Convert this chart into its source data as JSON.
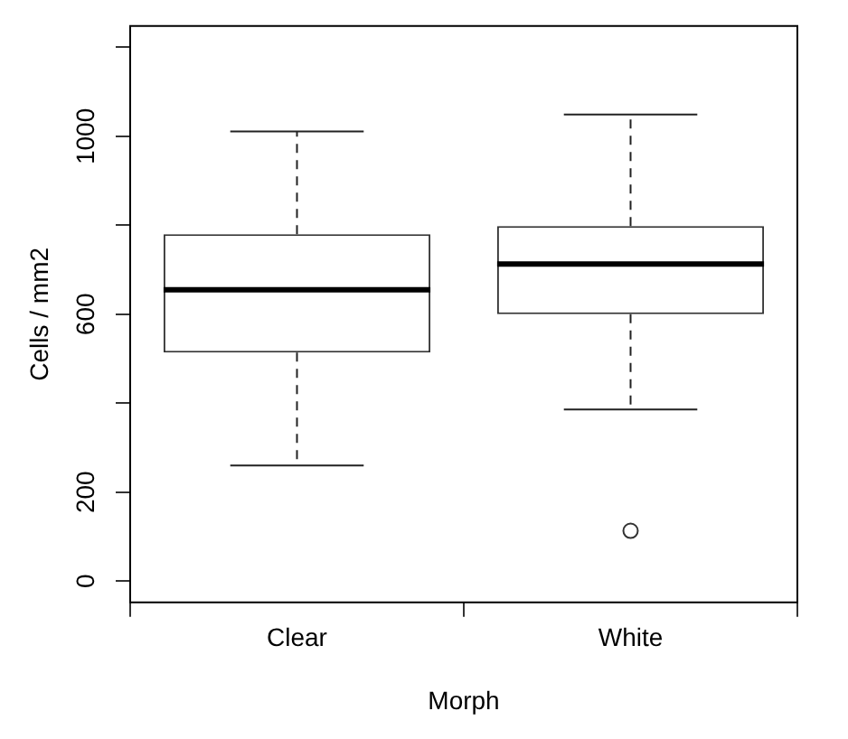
{
  "chart_data": {
    "type": "box",
    "xlabel": "Morph",
    "ylabel": "Cells / mm2",
    "categories": [
      "Clear",
      "White"
    ],
    "boxes": [
      {
        "low": 260,
        "q1": 514,
        "median": 655,
        "q3": 780,
        "high": 1011
      },
      {
        "low": 386,
        "q1": 600,
        "median": 713,
        "q3": 798,
        "high": 1049,
        "outliers": [
          113
        ]
      }
    ],
    "ylim": [
      -48,
      1248
    ],
    "yticks": [
      0,
      200,
      {
        "value": 400,
        "label": null
      },
      600,
      {
        "value": 800,
        "label": null
      },
      1000,
      {
        "value": 1200,
        "label": null
      }
    ]
  }
}
